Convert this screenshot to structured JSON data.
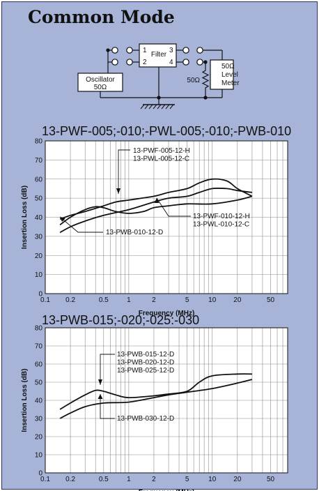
{
  "page_title": "Common Mode",
  "colors": {
    "page_background": "#a7b4d8",
    "plot_background": "#ffffff",
    "ink": "#111111"
  },
  "diagram": {
    "filter_label": "Filter",
    "pins": [
      "1",
      "2",
      "3",
      "4"
    ],
    "oscillator_label": "Oscillator",
    "oscillator_impedance": "50Ω",
    "resistor_label": "50Ω",
    "meter_impedance": "50Ω",
    "meter_label_1": "Level",
    "meter_label_2": "Meter",
    "ground_icon": "ground-symbol-icon"
  },
  "chart_data": [
    {
      "type": "line",
      "title": "13-PWF-005;-010;-PWL-005;-010;-PWB-010",
      "xlabel": "Frequency (MHz)",
      "ylabel": "Insertion Loss (dB)",
      "xscale": "log",
      "xlim": [
        0.1,
        80
      ],
      "ylim": [
        0,
        80
      ],
      "xticks": [
        0.1,
        0.2,
        0.5,
        1,
        2,
        5,
        10,
        20,
        50
      ],
      "xtick_labels": [
        "0.1",
        "0.2",
        "0.5",
        "1",
        "2",
        "5",
        "10",
        "20",
        "50"
      ],
      "yticks": [
        0,
        10,
        20,
        30,
        40,
        50,
        60,
        70,
        80
      ],
      "grid": true,
      "series": [
        {
          "name": "13-PWF-005-12-H / 13-PWL-005-12-C",
          "x": [
            0.15,
            0.2,
            0.3,
            0.5,
            0.7,
            1,
            2,
            3,
            5,
            7,
            10,
            15,
            20,
            30
          ],
          "y": [
            39,
            41,
            43,
            46,
            48,
            49,
            51,
            53,
            55,
            58,
            60,
            59,
            55,
            51
          ]
        },
        {
          "name": "13-PWF-010-12-H / 13-PWL-010-12-C",
          "x": [
            0.15,
            0.2,
            0.3,
            0.5,
            1,
            2,
            3,
            5,
            7,
            10,
            15,
            20,
            30
          ],
          "y": [
            32,
            35,
            38,
            41,
            44,
            48,
            50,
            51,
            53,
            55,
            55,
            54,
            53
          ]
        },
        {
          "name": "13-PWB-010-12-D",
          "x": [
            0.15,
            0.2,
            0.3,
            0.4,
            0.5,
            0.7,
            1,
            1.5,
            2,
            3,
            5,
            10,
            20,
            30
          ],
          "y": [
            36,
            40,
            44,
            45.5,
            45,
            43,
            42,
            43,
            45,
            46,
            47,
            47,
            49,
            51
          ]
        }
      ],
      "annotations": [
        {
          "lines": [
            "13-PWF-005-12-H",
            "13-PWL-005-12-C"
          ]
        },
        {
          "lines": [
            "13-PWF-010-12-H",
            "13-PWL-010-12-C"
          ]
        },
        {
          "lines": [
            "13-PWB-010-12-D"
          ]
        }
      ]
    },
    {
      "type": "line",
      "title": "13-PWB-015;-020;-025:-030",
      "xlabel": "Frequency (MHz)",
      "ylabel": "Insertion Loss (dB)",
      "xscale": "log",
      "xlim": [
        0.1,
        80
      ],
      "ylim": [
        0,
        80
      ],
      "xticks": [
        0.1,
        0.2,
        0.5,
        1,
        2,
        5,
        10,
        20,
        50
      ],
      "xtick_labels": [
        "0.1",
        "0.2",
        "0.5",
        "1",
        "2",
        "5",
        "10",
        "20",
        "50"
      ],
      "yticks": [
        0,
        10,
        20,
        30,
        40,
        50,
        60,
        70,
        80
      ],
      "grid": true,
      "series": [
        {
          "name": "13-PWB-015-12-D / 13-PWB-020-12-D / 13-PWB-025-12-D",
          "x": [
            0.15,
            0.2,
            0.3,
            0.4,
            0.5,
            0.7,
            1,
            2,
            3,
            5,
            7,
            10,
            20,
            30
          ],
          "y": [
            35,
            38.5,
            43,
            45.5,
            45,
            43,
            41.5,
            42.5,
            43.5,
            45,
            50,
            53.5,
            54.5,
            54.5
          ]
        },
        {
          "name": "13-PWB-030-12-D",
          "x": [
            0.15,
            0.2,
            0.3,
            0.5,
            1,
            2,
            3,
            5,
            10,
            20,
            30
          ],
          "y": [
            30,
            33,
            36.5,
            38.5,
            39,
            41.5,
            43,
            44.5,
            46.5,
            49.5,
            51.5
          ]
        }
      ],
      "annotations": [
        {
          "lines": [
            "13-PWB-015-12-D",
            "13-PWB-020-12-D",
            "13-PWB-025-12-D"
          ]
        },
        {
          "lines": [
            "13-PWB-030-12-D"
          ]
        }
      ]
    }
  ]
}
